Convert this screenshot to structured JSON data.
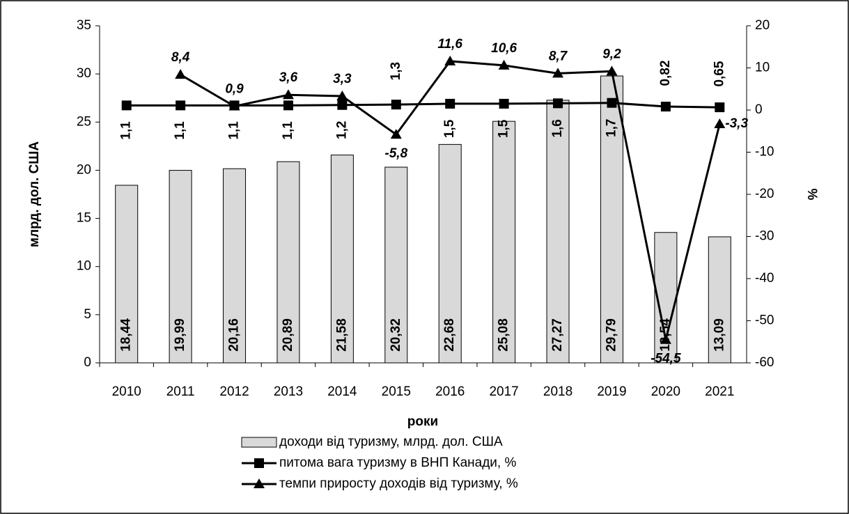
{
  "chart_data": {
    "type": "bar-line",
    "categories": [
      "2010",
      "2011",
      "2012",
      "2013",
      "2014",
      "2015",
      "2016",
      "2017",
      "2018",
      "2019",
      "2020",
      "2021"
    ],
    "y_label": "млрд. дол. США",
    "y2_label": "%",
    "x_label": "роки",
    "ylim": [
      0,
      35
    ],
    "yticks": [
      0,
      5,
      10,
      15,
      20,
      25,
      30,
      35
    ],
    "y2lim": [
      -60,
      20
    ],
    "y2ticks": [
      -60,
      -50,
      -40,
      -30,
      -20,
      -10,
      0,
      10,
      20
    ],
    "series": [
      {
        "name": "доходи від туризму, млрд. дол. США",
        "type": "bar",
        "color": "#d9d9d9",
        "values": [
          18.44,
          19.99,
          20.16,
          20.89,
          21.58,
          20.32,
          22.68,
          25.08,
          27.27,
          29.79,
          13.54,
          13.09
        ],
        "value_labels": [
          "18,44",
          "19,99",
          "20,16",
          "20,89",
          "21,58",
          "20,32",
          "22,68",
          "25,08",
          "27,27",
          "29,79",
          "13,54",
          "13,09"
        ]
      },
      {
        "name": "питома вага туризму в ВНП Канади, %",
        "type": "line",
        "marker": "square",
        "axis": "y2",
        "color": "#000000",
        "values": [
          1.1,
          1.1,
          1.1,
          1.1,
          1.2,
          1.3,
          1.5,
          1.5,
          1.6,
          1.7,
          0.82,
          0.65
        ],
        "value_labels": [
          "1,1",
          "1,1",
          "1,1",
          "1,1",
          "1,2",
          "1,3",
          "1,5",
          "1,5",
          "1,6",
          "1,7",
          "0,82",
          "0,65"
        ]
      },
      {
        "name": "темпи приросту доходів від туризму, %",
        "type": "line",
        "marker": "triangle",
        "axis": "y2",
        "color": "#000000",
        "values": [
          null,
          8.4,
          0.9,
          3.6,
          3.3,
          -5.8,
          11.6,
          10.6,
          8.7,
          9.2,
          -54.5,
          -3.3
        ],
        "value_labels": [
          null,
          "8,4",
          "0,9",
          "3,6",
          "3,3",
          "-5,8",
          "11,6",
          "10,6",
          "8,7",
          "9,2",
          "-54,5",
          "-3,3"
        ]
      }
    ]
  }
}
